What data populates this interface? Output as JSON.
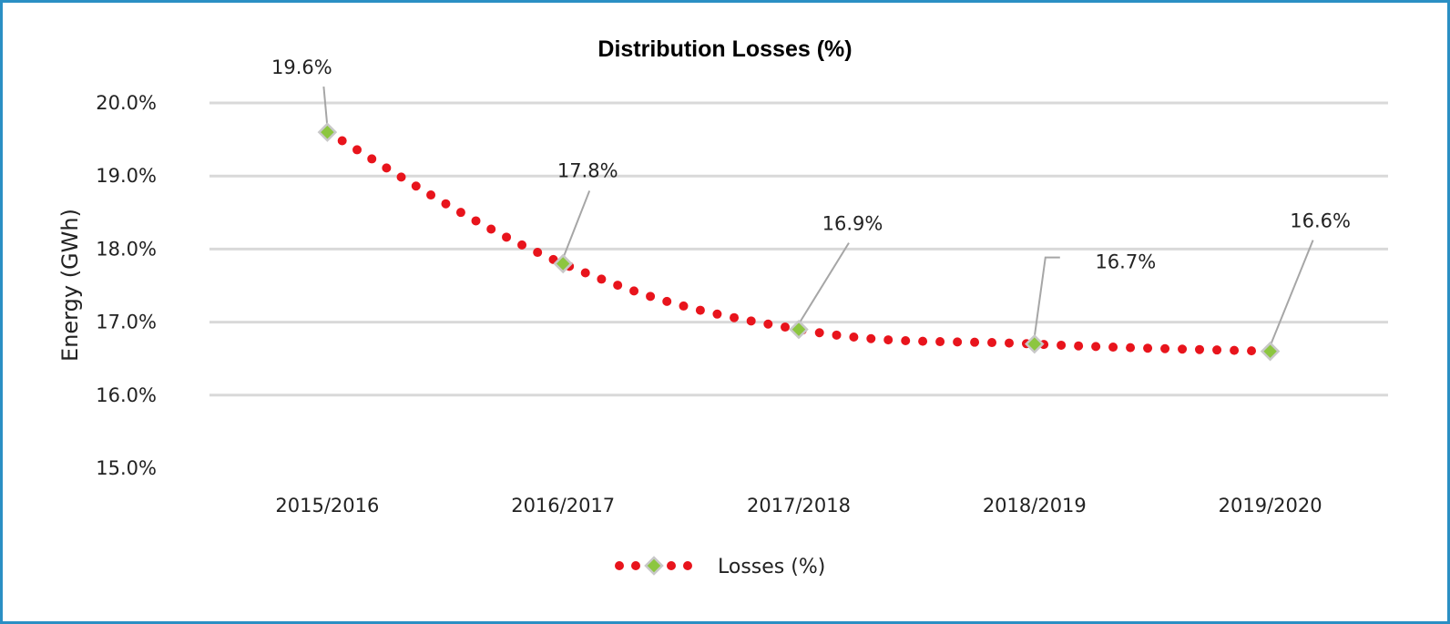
{
  "chart_data": {
    "type": "line",
    "title": "Distribution Losses (%)",
    "xlabel": "",
    "ylabel": "Energy (GWh)",
    "categories": [
      "2015/2016",
      "2016/2017",
      "2017/2018",
      "2018/2019",
      "2019/2020"
    ],
    "series": [
      {
        "name": "Losses (%)",
        "values": [
          19.6,
          17.8,
          16.9,
          16.7,
          16.6
        ],
        "labels": [
          "19.6%",
          "17.8%",
          "16.9%",
          "16.7%",
          "16.6%"
        ],
        "line_color": "#e8141c",
        "marker_color": "#8cc63f",
        "marker_border": "#c8c8c8"
      }
    ],
    "y_ticks": [
      "15.0%",
      "16.0%",
      "17.0%",
      "18.0%",
      "19.0%",
      "20.0%"
    ],
    "ylim": [
      15,
      20
    ],
    "grid": true,
    "legend": "bottom-center",
    "frame_color": "#2a8fc4"
  }
}
